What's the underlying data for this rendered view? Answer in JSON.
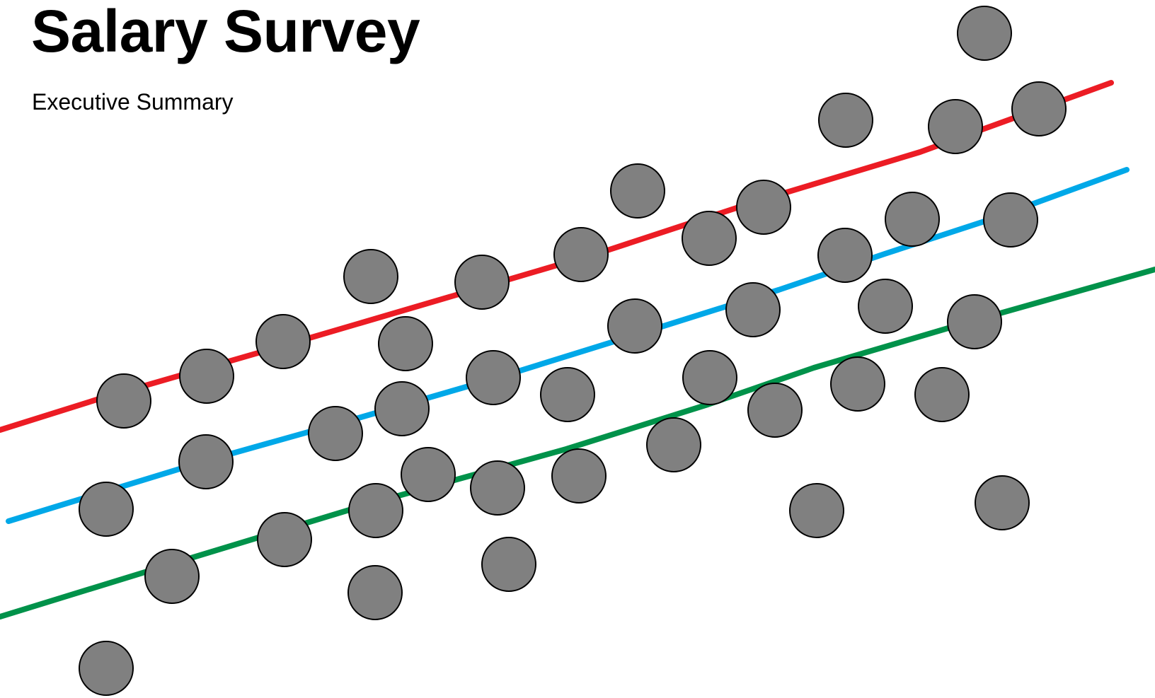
{
  "header": {
    "title": "Salary Survey",
    "subtitle": "Executive Summary"
  },
  "colors": {
    "background": "#ffffff",
    "text": "#000000",
    "dot_fill": "#808080",
    "dot_stroke": "#000000",
    "line_red": "#ec1c24",
    "line_blue": "#00a8e8",
    "line_green": "#00924a"
  },
  "artwork": {
    "lines": [
      {
        "id": "red",
        "color_key": "line_red"
      },
      {
        "id": "blue",
        "color_key": "line_blue"
      },
      {
        "id": "green",
        "color_key": "line_green"
      }
    ]
  }
}
